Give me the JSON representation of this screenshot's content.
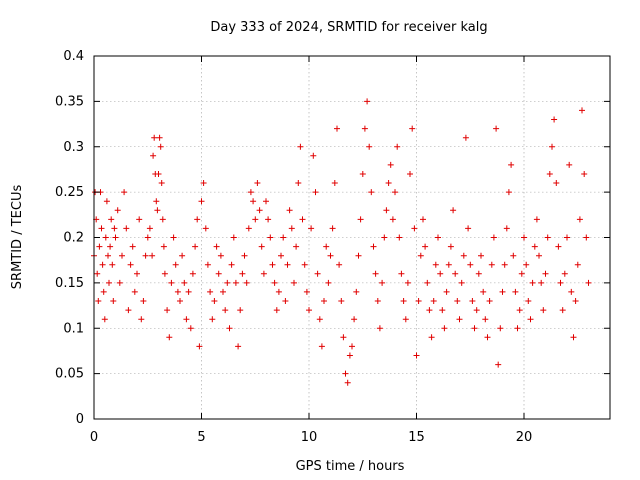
{
  "chart_data": {
    "type": "scatter",
    "title": "Day 333 of 2024, SRMTID for receiver kalg",
    "xlabel": "GPS time / hours",
    "ylabel": "SRMTID / TECUs",
    "xlim": [
      0,
      24
    ],
    "ylim": [
      0,
      0.4
    ],
    "x_ticks": [
      0,
      5,
      10,
      15,
      20
    ],
    "x_tick_labels": [
      "0",
      "5",
      "10",
      "15",
      "20"
    ],
    "y_ticks": [
      0,
      0.05,
      0.1,
      0.15,
      0.2,
      0.25,
      0.3,
      0.35,
      0.4
    ],
    "y_tick_labels": [
      "0",
      "0.05",
      "0.1",
      "0.15",
      "0.2",
      "0.25",
      "0.3",
      "0.35",
      "0.4"
    ],
    "grid": true,
    "marker": "+",
    "color": "#e00000",
    "series": [
      {
        "points": [
          [
            0.0,
            0.18
          ],
          [
            0.05,
            0.25
          ],
          [
            0.1,
            0.22
          ],
          [
            0.15,
            0.16
          ],
          [
            0.2,
            0.13
          ],
          [
            0.25,
            0.19
          ],
          [
            0.3,
            0.25
          ],
          [
            0.35,
            0.21
          ],
          [
            0.4,
            0.17
          ],
          [
            0.45,
            0.14
          ],
          [
            0.5,
            0.11
          ],
          [
            0.55,
            0.2
          ],
          [
            0.6,
            0.24
          ],
          [
            0.65,
            0.18
          ],
          [
            0.7,
            0.15
          ],
          [
            0.75,
            0.19
          ],
          [
            0.8,
            0.22
          ],
          [
            0.85,
            0.17
          ],
          [
            0.9,
            0.13
          ],
          [
            0.95,
            0.21
          ],
          [
            1.0,
            0.2
          ],
          [
            1.1,
            0.23
          ],
          [
            1.2,
            0.15
          ],
          [
            1.3,
            0.18
          ],
          [
            1.4,
            0.25
          ],
          [
            1.5,
            0.21
          ],
          [
            1.6,
            0.12
          ],
          [
            1.7,
            0.17
          ],
          [
            1.8,
            0.19
          ],
          [
            1.9,
            0.14
          ],
          [
            2.0,
            0.16
          ],
          [
            2.1,
            0.22
          ],
          [
            2.2,
            0.11
          ],
          [
            2.3,
            0.13
          ],
          [
            2.4,
            0.18
          ],
          [
            2.5,
            0.2
          ],
          [
            2.6,
            0.21
          ],
          [
            2.7,
            0.18
          ],
          [
            2.75,
            0.29
          ],
          [
            2.8,
            0.31
          ],
          [
            2.85,
            0.27
          ],
          [
            2.9,
            0.24
          ],
          [
            2.95,
            0.23
          ],
          [
            3.0,
            0.27
          ],
          [
            3.05,
            0.31
          ],
          [
            3.1,
            0.3
          ],
          [
            3.15,
            0.26
          ],
          [
            3.2,
            0.22
          ],
          [
            3.25,
            0.19
          ],
          [
            3.3,
            0.16
          ],
          [
            3.4,
            0.12
          ],
          [
            3.5,
            0.09
          ],
          [
            3.6,
            0.15
          ],
          [
            3.7,
            0.2
          ],
          [
            3.8,
            0.17
          ],
          [
            3.9,
            0.14
          ],
          [
            4.0,
            0.13
          ],
          [
            4.1,
            0.18
          ],
          [
            4.2,
            0.15
          ],
          [
            4.3,
            0.11
          ],
          [
            4.4,
            0.14
          ],
          [
            4.5,
            0.1
          ],
          [
            4.6,
            0.16
          ],
          [
            4.7,
            0.19
          ],
          [
            4.8,
            0.22
          ],
          [
            4.9,
            0.08
          ],
          [
            5.0,
            0.24
          ],
          [
            5.1,
            0.26
          ],
          [
            5.2,
            0.21
          ],
          [
            5.3,
            0.17
          ],
          [
            5.4,
            0.14
          ],
          [
            5.5,
            0.11
          ],
          [
            5.6,
            0.13
          ],
          [
            5.7,
            0.19
          ],
          [
            5.8,
            0.16
          ],
          [
            5.9,
            0.18
          ],
          [
            6.0,
            0.14
          ],
          [
            6.1,
            0.12
          ],
          [
            6.2,
            0.15
          ],
          [
            6.3,
            0.1
          ],
          [
            6.4,
            0.17
          ],
          [
            6.5,
            0.2
          ],
          [
            6.6,
            0.15
          ],
          [
            6.7,
            0.08
          ],
          [
            6.8,
            0.12
          ],
          [
            6.9,
            0.16
          ],
          [
            7.0,
            0.18
          ],
          [
            7.1,
            0.15
          ],
          [
            7.2,
            0.21
          ],
          [
            7.3,
            0.25
          ],
          [
            7.4,
            0.24
          ],
          [
            7.5,
            0.22
          ],
          [
            7.6,
            0.26
          ],
          [
            7.7,
            0.23
          ],
          [
            7.8,
            0.19
          ],
          [
            7.9,
            0.16
          ],
          [
            8.0,
            0.24
          ],
          [
            8.1,
            0.22
          ],
          [
            8.2,
            0.2
          ],
          [
            8.3,
            0.17
          ],
          [
            8.4,
            0.15
          ],
          [
            8.5,
            0.12
          ],
          [
            8.6,
            0.14
          ],
          [
            8.7,
            0.18
          ],
          [
            8.8,
            0.2
          ],
          [
            8.9,
            0.13
          ],
          [
            9.0,
            0.17
          ],
          [
            9.1,
            0.23
          ],
          [
            9.2,
            0.21
          ],
          [
            9.3,
            0.15
          ],
          [
            9.4,
            0.19
          ],
          [
            9.5,
            0.26
          ],
          [
            9.6,
            0.3
          ],
          [
            9.7,
            0.22
          ],
          [
            9.8,
            0.17
          ],
          [
            9.9,
            0.14
          ],
          [
            10.0,
            0.12
          ],
          [
            10.1,
            0.21
          ],
          [
            10.2,
            0.29
          ],
          [
            10.3,
            0.25
          ],
          [
            10.4,
            0.16
          ],
          [
            10.5,
            0.11
          ],
          [
            10.6,
            0.08
          ],
          [
            10.7,
            0.13
          ],
          [
            10.8,
            0.19
          ],
          [
            10.9,
            0.15
          ],
          [
            11.0,
            0.18
          ],
          [
            11.1,
            0.21
          ],
          [
            11.2,
            0.26
          ],
          [
            11.3,
            0.32
          ],
          [
            11.4,
            0.17
          ],
          [
            11.5,
            0.13
          ],
          [
            11.6,
            0.09
          ],
          [
            11.7,
            0.05
          ],
          [
            11.8,
            0.04
          ],
          [
            11.9,
            0.07
          ],
          [
            12.0,
            0.08
          ],
          [
            12.1,
            0.11
          ],
          [
            12.2,
            0.14
          ],
          [
            12.3,
            0.18
          ],
          [
            12.4,
            0.22
          ],
          [
            12.5,
            0.27
          ],
          [
            12.6,
            0.32
          ],
          [
            12.7,
            0.35
          ],
          [
            12.8,
            0.3
          ],
          [
            12.9,
            0.25
          ],
          [
            13.0,
            0.19
          ],
          [
            13.1,
            0.16
          ],
          [
            13.2,
            0.13
          ],
          [
            13.3,
            0.1
          ],
          [
            13.4,
            0.15
          ],
          [
            13.5,
            0.2
          ],
          [
            13.6,
            0.23
          ],
          [
            13.7,
            0.26
          ],
          [
            13.8,
            0.28
          ],
          [
            13.9,
            0.22
          ],
          [
            14.0,
            0.25
          ],
          [
            14.1,
            0.3
          ],
          [
            14.2,
            0.2
          ],
          [
            14.3,
            0.16
          ],
          [
            14.4,
            0.13
          ],
          [
            14.5,
            0.11
          ],
          [
            14.6,
            0.15
          ],
          [
            14.7,
            0.27
          ],
          [
            14.8,
            0.32
          ],
          [
            14.9,
            0.21
          ],
          [
            15.0,
            0.07
          ],
          [
            15.1,
            0.13
          ],
          [
            15.2,
            0.18
          ],
          [
            15.3,
            0.22
          ],
          [
            15.4,
            0.19
          ],
          [
            15.5,
            0.15
          ],
          [
            15.6,
            0.12
          ],
          [
            15.7,
            0.09
          ],
          [
            15.8,
            0.13
          ],
          [
            15.9,
            0.17
          ],
          [
            16.0,
            0.2
          ],
          [
            16.1,
            0.16
          ],
          [
            16.2,
            0.12
          ],
          [
            16.3,
            0.1
          ],
          [
            16.4,
            0.14
          ],
          [
            16.5,
            0.17
          ],
          [
            16.6,
            0.19
          ],
          [
            16.7,
            0.23
          ],
          [
            16.8,
            0.16
          ],
          [
            16.9,
            0.13
          ],
          [
            17.0,
            0.11
          ],
          [
            17.1,
            0.15
          ],
          [
            17.2,
            0.18
          ],
          [
            17.3,
            0.31
          ],
          [
            17.4,
            0.21
          ],
          [
            17.5,
            0.17
          ],
          [
            17.6,
            0.13
          ],
          [
            17.7,
            0.1
          ],
          [
            17.8,
            0.12
          ],
          [
            17.9,
            0.16
          ],
          [
            18.0,
            0.18
          ],
          [
            18.1,
            0.14
          ],
          [
            18.2,
            0.11
          ],
          [
            18.3,
            0.09
          ],
          [
            18.4,
            0.13
          ],
          [
            18.5,
            0.17
          ],
          [
            18.6,
            0.2
          ],
          [
            18.7,
            0.32
          ],
          [
            18.8,
            0.06
          ],
          [
            18.9,
            0.1
          ],
          [
            19.0,
            0.14
          ],
          [
            19.1,
            0.17
          ],
          [
            19.2,
            0.21
          ],
          [
            19.3,
            0.25
          ],
          [
            19.4,
            0.28
          ],
          [
            19.5,
            0.18
          ],
          [
            19.6,
            0.14
          ],
          [
            19.7,
            0.1
          ],
          [
            19.8,
            0.12
          ],
          [
            19.9,
            0.16
          ],
          [
            20.0,
            0.2
          ],
          [
            20.1,
            0.17
          ],
          [
            20.2,
            0.13
          ],
          [
            20.3,
            0.11
          ],
          [
            20.4,
            0.15
          ],
          [
            20.5,
            0.19
          ],
          [
            20.6,
            0.22
          ],
          [
            20.7,
            0.18
          ],
          [
            20.8,
            0.15
          ],
          [
            20.9,
            0.12
          ],
          [
            21.0,
            0.16
          ],
          [
            21.1,
            0.2
          ],
          [
            21.2,
            0.27
          ],
          [
            21.3,
            0.3
          ],
          [
            21.4,
            0.33
          ],
          [
            21.5,
            0.26
          ],
          [
            21.6,
            0.19
          ],
          [
            21.7,
            0.15
          ],
          [
            21.8,
            0.12
          ],
          [
            21.9,
            0.16
          ],
          [
            22.0,
            0.2
          ],
          [
            22.1,
            0.28
          ],
          [
            22.2,
            0.14
          ],
          [
            22.3,
            0.09
          ],
          [
            22.4,
            0.13
          ],
          [
            22.5,
            0.17
          ],
          [
            22.6,
            0.22
          ],
          [
            22.7,
            0.34
          ],
          [
            22.8,
            0.27
          ],
          [
            22.9,
            0.2
          ],
          [
            23.0,
            0.15
          ]
        ]
      }
    ]
  }
}
